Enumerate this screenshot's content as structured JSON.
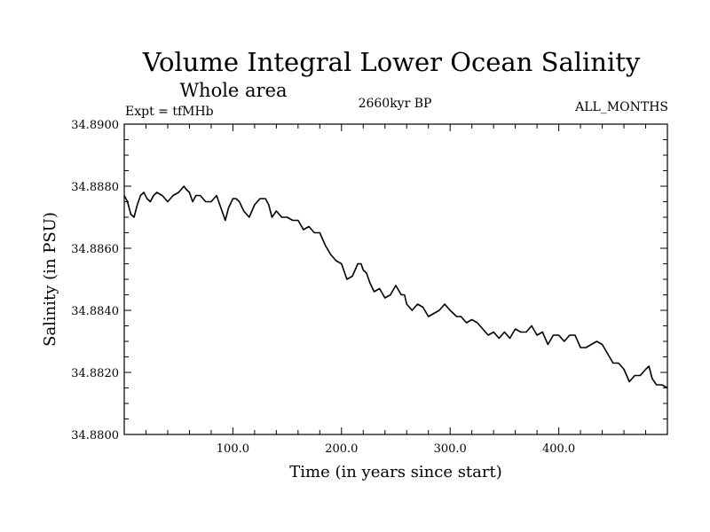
{
  "chart_data": {
    "type": "line",
    "title": "Volume Integral Lower Ocean Salinity",
    "subtitle": "Whole area",
    "experiment": "Expt = tfMHb",
    "period": "2660kyr BP",
    "season": "ALL_MONTHS",
    "xlabel": "Time (in years since start)",
    "ylabel": "Salinity (in PSU)",
    "xlim": [
      0,
      500
    ],
    "ylim": [
      34.88,
      34.89
    ],
    "x_ticks": [
      100,
      200,
      300,
      400
    ],
    "x_tick_labels": [
      "100.0",
      "200.0",
      "300.0",
      "400.0"
    ],
    "y_ticks": [
      34.88,
      34.882,
      34.884,
      34.886,
      34.888,
      34.89
    ],
    "y_tick_labels": [
      "34.8800",
      "34.8820",
      "34.8840",
      "34.8860",
      "34.8880",
      "34.8900"
    ],
    "grid": false,
    "series": [
      {
        "name": "Salinity",
        "x": [
          0,
          3,
          6,
          9,
          12,
          15,
          18,
          21,
          24,
          27,
          30,
          35,
          40,
          45,
          50,
          55,
          57,
          60,
          63,
          66,
          70,
          75,
          80,
          85,
          90,
          93,
          96,
          100,
          103,
          106,
          110,
          115,
          120,
          125,
          130,
          133,
          136,
          140,
          145,
          150,
          155,
          160,
          165,
          170,
          175,
          180,
          185,
          190,
          195,
          200,
          205,
          210,
          215,
          218,
          220,
          223,
          226,
          230,
          235,
          240,
          245,
          250,
          255,
          258,
          260,
          265,
          270,
          275,
          280,
          285,
          290,
          295,
          300,
          303,
          306,
          310,
          315,
          320,
          325,
          330,
          335,
          340,
          345,
          350,
          355,
          360,
          365,
          370,
          375,
          380,
          385,
          390,
          395,
          400,
          405,
          410,
          415,
          420,
          425,
          430,
          435,
          440,
          445,
          450,
          455,
          460,
          465,
          470,
          475,
          480,
          483,
          486,
          490,
          495,
          500
        ],
        "values": [
          34.8877,
          34.8875,
          34.8871,
          34.887,
          34.8874,
          34.8877,
          34.8878,
          34.8876,
          34.8875,
          34.8877,
          34.8878,
          34.8877,
          34.8875,
          34.8877,
          34.8878,
          34.888,
          34.8879,
          34.8878,
          34.8875,
          34.8877,
          34.8877,
          34.8875,
          34.8875,
          34.8877,
          34.8872,
          34.8869,
          34.8873,
          34.8876,
          34.8876,
          34.8875,
          34.8872,
          34.887,
          34.8874,
          34.8876,
          34.8876,
          34.8874,
          34.887,
          34.8872,
          34.887,
          34.887,
          34.8869,
          34.8869,
          34.8866,
          34.8867,
          34.8865,
          34.8865,
          34.8861,
          34.8858,
          34.8856,
          34.8855,
          34.885,
          34.8851,
          34.8855,
          34.8855,
          34.8853,
          34.8852,
          34.8849,
          34.8846,
          34.8847,
          34.8844,
          34.8845,
          34.8848,
          34.8845,
          34.8845,
          34.8842,
          34.884,
          34.8842,
          34.8841,
          34.8838,
          34.8839,
          34.884,
          34.8842,
          34.884,
          34.8839,
          34.8838,
          34.8838,
          34.8836,
          34.8837,
          34.8836,
          34.8834,
          34.8832,
          34.8833,
          34.8831,
          34.8833,
          34.8831,
          34.8834,
          34.8833,
          34.8833,
          34.8835,
          34.8832,
          34.8833,
          34.8829,
          34.8832,
          34.8832,
          34.883,
          34.8832,
          34.8832,
          34.8828,
          34.8828,
          34.8829,
          34.883,
          34.8829,
          34.8826,
          34.8823,
          34.8823,
          34.8821,
          34.8817,
          34.8819,
          34.8819,
          34.8821,
          34.8822,
          34.8818,
          34.8816,
          34.8816,
          34.8815
        ]
      }
    ]
  }
}
